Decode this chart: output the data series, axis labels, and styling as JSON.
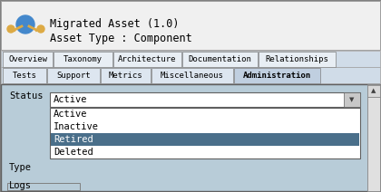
{
  "title": "Migrated Asset (1.0)",
  "subtitle": "Asset Type : Component",
  "tabs_row1": [
    "Overview",
    "Taxonomy",
    "Architecture",
    "Documentation",
    "Relationships"
  ],
  "tabs_row2": [
    "Tests",
    "Support",
    "Metrics",
    "Miscellaneous",
    "Administration"
  ],
  "active_tab": "Administration",
  "status_label": "Status",
  "status_value": "Active",
  "type_label": "Type",
  "logs_label": "Logs",
  "dropdown_items": [
    "Active",
    "Inactive",
    "Retired",
    "Deleted"
  ],
  "selected_item": "Retired",
  "header_bg": "#f0f0f0",
  "tab_bg": "#c8d8e8",
  "tab_active_bg": "#c8d8e8",
  "content_bg": "#c8d8e8",
  "dropdown_bg": "#ffffff",
  "selected_bg": "#4a6f8a",
  "selected_fg": "#ffffff",
  "border_color": "#808080",
  "tab_border": "#a0a0a0",
  "text_color": "#000000",
  "outer_bg": "#ffffff",
  "scrollbar_bg": "#c0c0c0"
}
